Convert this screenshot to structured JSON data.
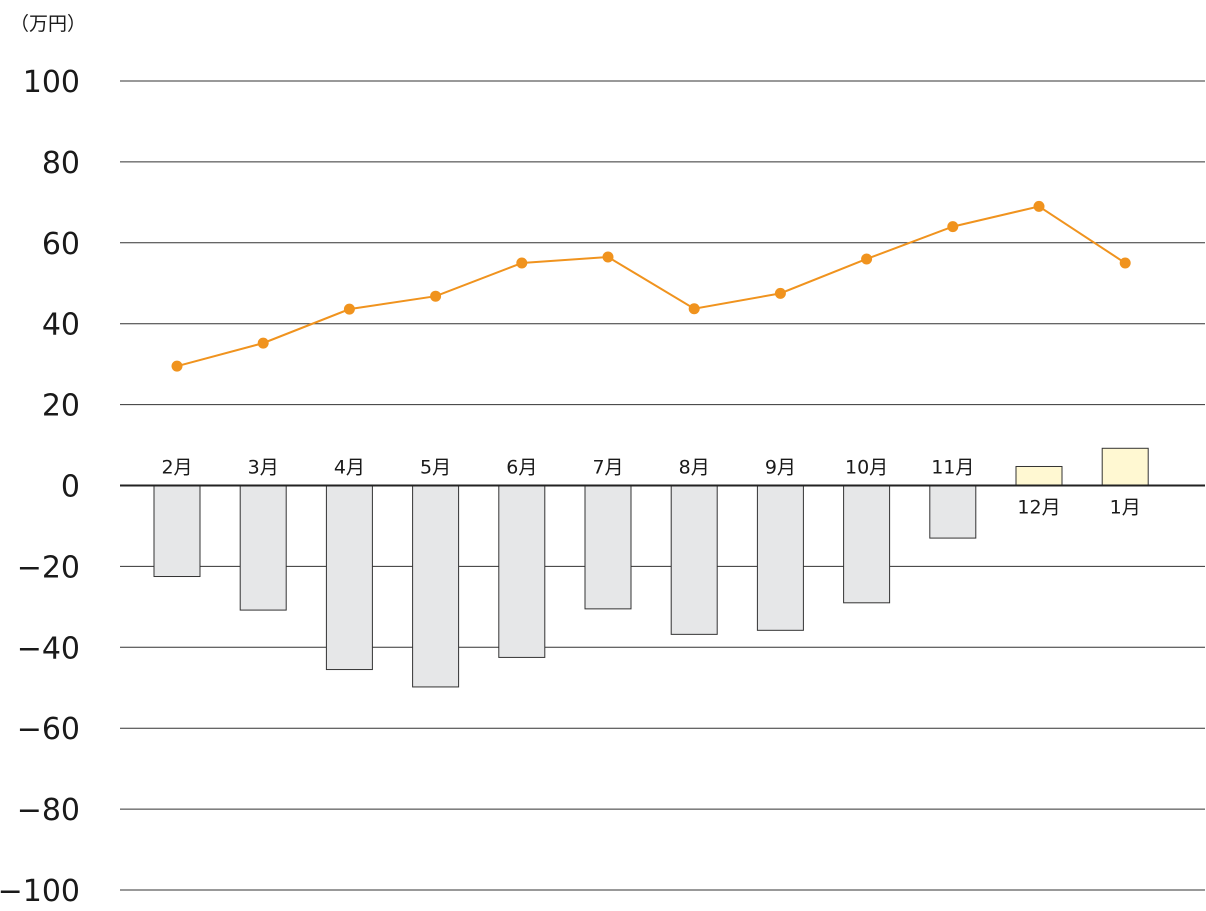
{
  "chart_data": {
    "type": "bar",
    "unit_label": "（万円）",
    "categories": [
      "2月",
      "3月",
      "4月",
      "5月",
      "6月",
      "7月",
      "8月",
      "9月",
      "10月",
      "11月",
      "12月",
      "1月"
    ],
    "ylim": [
      -100,
      100
    ],
    "yticks": [
      100,
      80,
      60,
      40,
      20,
      0,
      -20,
      -40,
      -60,
      -80,
      -100
    ],
    "ytick_labels": [
      "100",
      "80",
      "60",
      "40",
      "20",
      "0",
      "−20",
      "−40",
      "−60",
      "−80",
      "−100"
    ],
    "grid": true,
    "series": [
      {
        "type": "bar",
        "values": [
          -22.5,
          -30.8,
          -45.5,
          -49.8,
          -42.5,
          -30.5,
          -36.8,
          -35.8,
          -29,
          -13,
          4.7,
          9.2
        ]
      },
      {
        "type": "line",
        "values": [
          29.5,
          35.2,
          43.6,
          46.8,
          55,
          56.5,
          43.7,
          47.5,
          56,
          64,
          69,
          55
        ]
      }
    ],
    "colors": {
      "bar_negative": "#e6e7e8",
      "bar_positive": "#fff8d2",
      "bar_stroke": "#333333",
      "line": "#f0931e",
      "grid": "#333333",
      "zero_line": "#222222"
    }
  }
}
